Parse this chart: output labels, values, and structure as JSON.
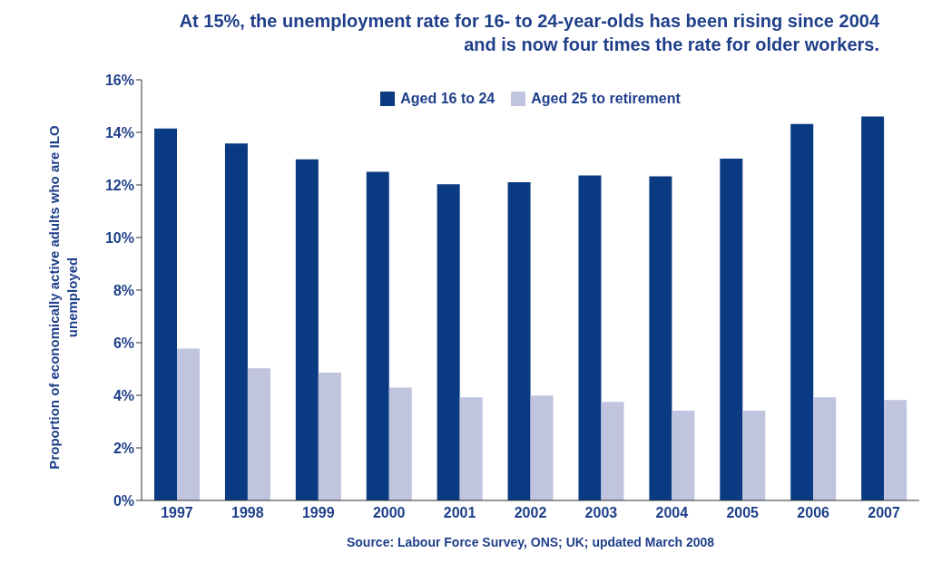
{
  "chart_data": {
    "type": "bar",
    "title": "At 15%, the unemployment rate for 16- to 24-year-olds has been rising since 2004 and is now four times the rate for older workers.",
    "ylabel": "Proportion of economically active adults who are ILO unemployed",
    "annotations": [
      "Source: Labour Force Survey, ONS; UK; updated March 2008"
    ],
    "categories": [
      "1997",
      "1998",
      "1999",
      "2000",
      "2001",
      "2002",
      "2003",
      "2004",
      "2005",
      "2006",
      "2007"
    ],
    "series": [
      {
        "name": "Aged 16 to 24",
        "color": "#0a3a82",
        "values": [
          14.15,
          13.58,
          12.97,
          12.5,
          12.03,
          12.1,
          12.36,
          12.33,
          13.0,
          14.32,
          14.6
        ]
      },
      {
        "name": "Aged 25 to retirement",
        "color": "#c0c4de",
        "values": [
          5.78,
          5.03,
          4.86,
          4.29,
          3.92,
          3.99,
          3.75,
          3.41,
          3.41,
          3.92,
          3.82
        ]
      }
    ],
    "ylim": [
      0,
      16
    ],
    "yticks": [
      {
        "value": 0,
        "label": "0%"
      },
      {
        "value": 2,
        "label": "2%"
      },
      {
        "value": 4,
        "label": "4%"
      },
      {
        "value": 6,
        "label": "6%"
      },
      {
        "value": 8,
        "label": "8%"
      },
      {
        "value": 10,
        "label": "10%"
      },
      {
        "value": 12,
        "label": "12%"
      },
      {
        "value": 14,
        "label": "14%"
      },
      {
        "value": 16,
        "label": "16%"
      }
    ],
    "grid": false,
    "legend": "top"
  }
}
